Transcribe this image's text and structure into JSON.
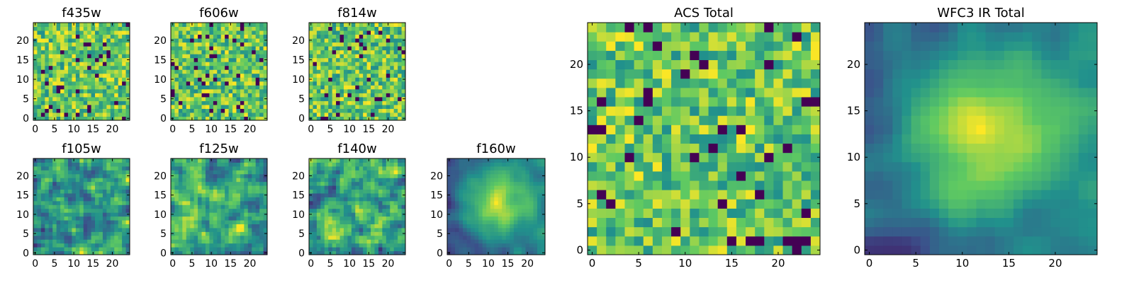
{
  "colormap": [
    "#440154",
    "#3b528b",
    "#21918c",
    "#5ec962",
    "#fde725"
  ],
  "chart_data": [
    {
      "type": "heatmap",
      "title": "f435w",
      "size": 25,
      "seed": 11,
      "style": "noise",
      "xticks": [
        0,
        5,
        10,
        15,
        20
      ],
      "yticks": [
        0,
        5,
        10,
        15,
        20
      ],
      "xlim": [
        0,
        25
      ],
      "ylim": [
        0,
        25
      ]
    },
    {
      "type": "heatmap",
      "title": "f606w",
      "size": 25,
      "seed": 23,
      "style": "noise",
      "xticks": [
        0,
        5,
        10,
        15,
        20
      ],
      "yticks": [
        0,
        5,
        10,
        15,
        20
      ],
      "xlim": [
        0,
        25
      ],
      "ylim": [
        0,
        25
      ]
    },
    {
      "type": "heatmap",
      "title": "f814w",
      "size": 25,
      "seed": 37,
      "style": "noise",
      "xticks": [
        0,
        5,
        10,
        15,
        20
      ],
      "yticks": [
        0,
        5,
        10,
        15,
        20
      ],
      "xlim": [
        0,
        25
      ],
      "ylim": [
        0,
        25
      ]
    },
    {
      "type": "heatmap",
      "title": "f105w",
      "size": 25,
      "seed": 41,
      "style": "blobby",
      "xticks": [
        0,
        5,
        10,
        15,
        20
      ],
      "yticks": [
        0,
        5,
        10,
        15,
        20
      ],
      "xlim": [
        0,
        25
      ],
      "ylim": [
        0,
        25
      ]
    },
    {
      "type": "heatmap",
      "title": "f125w",
      "size": 25,
      "seed": 53,
      "style": "blobby",
      "xticks": [
        0,
        5,
        10,
        15,
        20
      ],
      "yticks": [
        0,
        5,
        10,
        15,
        20
      ],
      "xlim": [
        0,
        25
      ],
      "ylim": [
        0,
        25
      ]
    },
    {
      "type": "heatmap",
      "title": "f140w",
      "size": 25,
      "seed": 67,
      "style": "blobby",
      "xticks": [
        0,
        5,
        10,
        15,
        20
      ],
      "yticks": [
        0,
        5,
        10,
        15,
        20
      ],
      "xlim": [
        0,
        25
      ],
      "ylim": [
        0,
        25
      ]
    },
    {
      "type": "heatmap",
      "title": "f160w",
      "size": 25,
      "seed": 79,
      "style": "smooth",
      "xticks": [
        0,
        5,
        10,
        15,
        20
      ],
      "yticks": [
        0,
        5,
        10,
        15,
        20
      ],
      "xlim": [
        0,
        25
      ],
      "ylim": [
        0,
        25
      ]
    },
    {
      "type": "heatmap",
      "title": "ACS Total",
      "size": 25,
      "seed": 83,
      "style": "noise",
      "xticks": [
        0,
        5,
        10,
        15,
        20
      ],
      "yticks": [
        0,
        5,
        10,
        15,
        20
      ],
      "xlim": [
        0,
        25
      ],
      "ylim": [
        0,
        25
      ]
    },
    {
      "type": "heatmap",
      "title": "WFC3 IR Total",
      "size": 25,
      "seed": 97,
      "style": "smooth",
      "xticks": [
        0,
        5,
        10,
        15,
        20
      ],
      "yticks": [
        0,
        5,
        10,
        15,
        20
      ],
      "xlim": [
        0,
        25
      ],
      "ylim": [
        0,
        25
      ]
    }
  ]
}
